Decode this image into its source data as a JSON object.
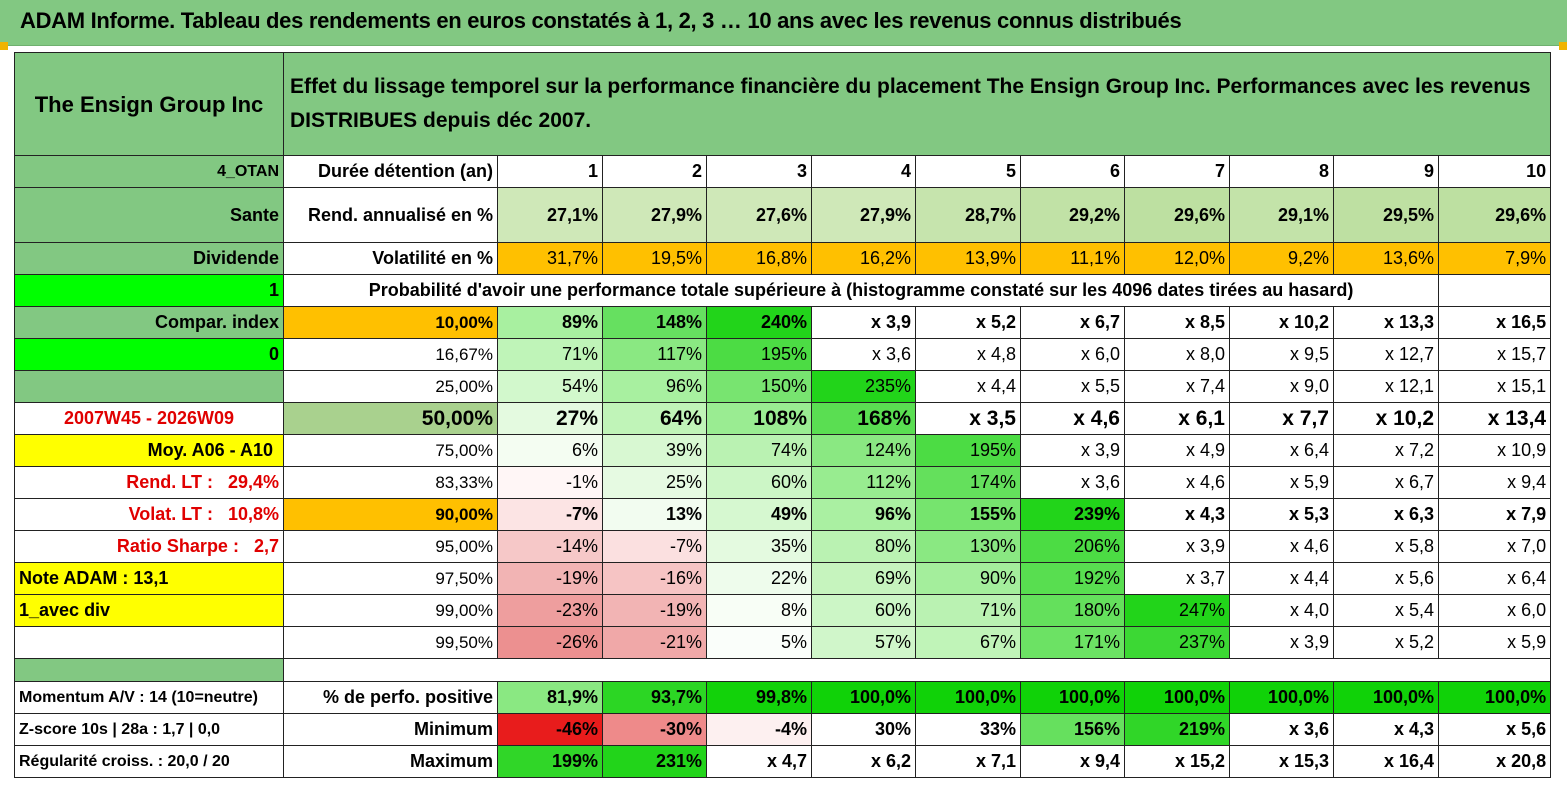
{
  "title": "ADAM Informe. Tableau des rendements en euros constatés à 1, 2, 3 … 10 ans avec les revenus connus distribués",
  "header": {
    "name": "The Ensign Group Inc",
    "description": "Effet du lissage temporel sur la performance financière du placement The Ensign Group Inc. Performances avec les revenus DISTRIBUES depuis déc 2007."
  },
  "left": {
    "code": "4_OTAN",
    "sector": "Sante",
    "type": "Dividende",
    "flag1": "1",
    "compar": "Compar. index",
    "flag0": "0",
    "period": "2007W45 - 2026W09",
    "moy": "Moy. A06 - A10",
    "rend_label": "Rend. LT :",
    "rend_value": "29,4%",
    "volat_label": "Volat. LT :",
    "volat_value": "10,8%",
    "sharpe_label": "Ratio Sharpe :",
    "sharpe_value": "2,7",
    "note": "Note ADAM : 13,1",
    "div": "1_avec div",
    "momentum": "Momentum A/V : 14 (10=neutre)",
    "zscore": "Z-score 10s | 28a : 1,7 | 0,0",
    "regularite": "Régularité croiss. : 20,0 / 20"
  },
  "duree_label": "Durée détention (an)",
  "years": [
    "1",
    "2",
    "3",
    "4",
    "5",
    "6",
    "7",
    "8",
    "9",
    "10"
  ],
  "rend_row": {
    "label": "Rend. annualisé en %",
    "values": [
      "27,1%",
      "27,9%",
      "27,6%",
      "27,9%",
      "28,7%",
      "29,2%",
      "29,6%",
      "29,1%",
      "29,5%",
      "29,6%"
    ]
  },
  "vol_row": {
    "label": "Volatilité en %",
    "values": [
      "31,7%",
      "19,5%",
      "16,8%",
      "16,2%",
      "13,9%",
      "11,1%",
      "12,0%",
      "9,2%",
      "13,6%",
      "7,9%"
    ]
  },
  "prob_title": "Probabilité d'avoir une performance totale supérieure à (histogramme constaté sur les 4096 dates tirées au hasard)",
  "prob_rows": [
    {
      "pct": "10,00%",
      "values": [
        "89%",
        "148%",
        "240%",
        "x 3,9",
        "x 5,2",
        "x 6,7",
        "x 8,5",
        "x 10,2",
        "x 13,3",
        "x 16,5"
      ]
    },
    {
      "pct": "16,67%",
      "values": [
        "71%",
        "117%",
        "195%",
        "x 3,6",
        "x 4,8",
        "x 6,0",
        "x 8,0",
        "x 9,5",
        "x 12,7",
        "x 15,7"
      ]
    },
    {
      "pct": "25,00%",
      "values": [
        "54%",
        "96%",
        "150%",
        "235%",
        "x 4,4",
        "x 5,5",
        "x 7,4",
        "x 9,0",
        "x 12,1",
        "x 15,1"
      ]
    },
    {
      "pct": "50,00%",
      "values": [
        "27%",
        "64%",
        "108%",
        "168%",
        "x 3,5",
        "x 4,6",
        "x 6,1",
        "x 7,7",
        "x 10,2",
        "x 13,4"
      ]
    },
    {
      "pct": "75,00%",
      "values": [
        "6%",
        "39%",
        "74%",
        "124%",
        "195%",
        "x 3,9",
        "x 4,9",
        "x 6,4",
        "x 7,2",
        "x 10,9"
      ]
    },
    {
      "pct": "83,33%",
      "values": [
        "-1%",
        "25%",
        "60%",
        "112%",
        "174%",
        "x 3,6",
        "x 4,6",
        "x 5,9",
        "x 6,7",
        "x 9,4"
      ]
    },
    {
      "pct": "90,00%",
      "values": [
        "-7%",
        "13%",
        "49%",
        "96%",
        "155%",
        "239%",
        "x 4,3",
        "x 5,3",
        "x 6,3",
        "x 7,9"
      ]
    },
    {
      "pct": "95,00%",
      "values": [
        "-14%",
        "-7%",
        "35%",
        "80%",
        "130%",
        "206%",
        "x 3,9",
        "x 4,6",
        "x 5,8",
        "x 7,0"
      ]
    },
    {
      "pct": "97,50%",
      "values": [
        "-19%",
        "-16%",
        "22%",
        "69%",
        "90%",
        "192%",
        "x 3,7",
        "x 4,4",
        "x 5,6",
        "x 6,4"
      ]
    },
    {
      "pct": "99,00%",
      "values": [
        "-23%",
        "-19%",
        "8%",
        "60%",
        "71%",
        "180%",
        "247%",
        "x 4,0",
        "x 5,4",
        "x 6,0"
      ]
    },
    {
      "pct": "99,50%",
      "values": [
        "-26%",
        "-21%",
        "5%",
        "57%",
        "67%",
        "171%",
        "237%",
        "x 3,9",
        "x 5,2",
        "x 5,9"
      ]
    }
  ],
  "stats_rows": [
    {
      "label": "% de perfo. positive",
      "values": [
        "81,9%",
        "93,7%",
        "99,8%",
        "100,0%",
        "100,0%",
        "100,0%",
        "100,0%",
        "100,0%",
        "100,0%",
        "100,0%"
      ]
    },
    {
      "label": "Minimum",
      "values": [
        "-46%",
        "-30%",
        "-4%",
        "30%",
        "33%",
        "156%",
        "219%",
        "x 3,6",
        "x 4,3",
        "x 5,6"
      ]
    },
    {
      "label": "Maximum",
      "values": [
        "199%",
        "231%",
        "x 4,7",
        "x 6,2",
        "x 7,1",
        "x 9,4",
        "x 15,2",
        "x 15,3",
        "x 16,4",
        "x 20,8"
      ]
    }
  ],
  "colors": {
    "header_green": "#82c882",
    "orange": "#ffc000",
    "yellow": "#ffff00",
    "bright_green": "#00ff00",
    "label_red": "#e00000"
  }
}
